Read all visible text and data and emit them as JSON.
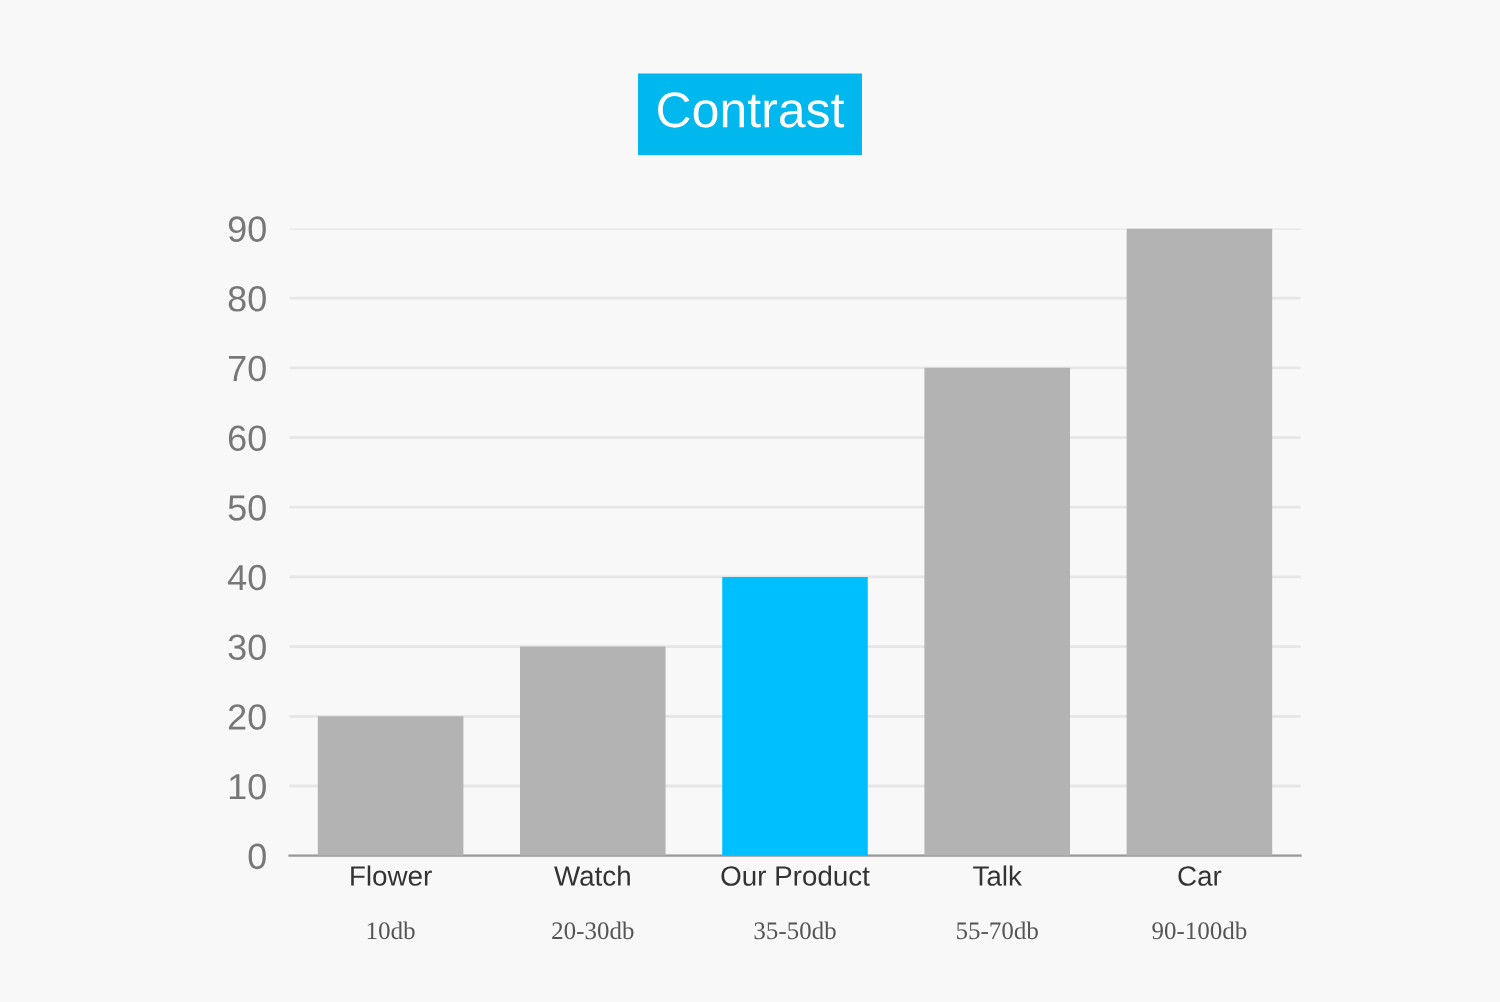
{
  "chart_data": {
    "type": "bar",
    "title": "Contrast",
    "categories": [
      "Flower\n10db",
      "Watch\n20-30db",
      "Our Product\n35-50db",
      "Talk\n55-70db",
      "Car\n90-100db"
    ],
    "values": [
      20,
      30,
      40,
      70,
      90
    ],
    "colors": [
      "#b3b3b3",
      "#b3b3b3",
      "#00bfff",
      "#b3b3b3",
      "#b3b3b3"
    ],
    "ylim": [
      0,
      90
    ],
    "yticks": [
      0,
      10,
      20,
      30,
      40,
      50,
      60,
      70,
      80,
      90
    ],
    "grid": "y"
  }
}
